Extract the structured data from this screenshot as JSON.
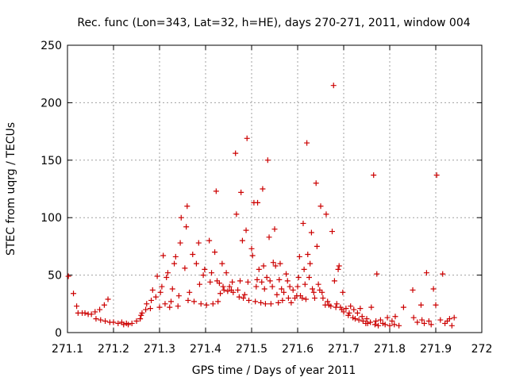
{
  "chart_data": {
    "type": "scatter",
    "title": "Rec. func (Lon=343, Lat=32, h=HE), days 270-271, 2011, window 004",
    "xlabel": "GPS time / Days of year 2011",
    "ylabel": "STEC from uqrg / TECUs",
    "xlim": [
      271.1,
      272
    ],
    "ylim": [
      0,
      250
    ],
    "xticks": [
      "271.1",
      "271.2",
      "271.3",
      "271.4",
      "271.5",
      "271.6",
      "271.7",
      "271.8",
      "271.9",
      "272"
    ],
    "yticks": [
      "0",
      "50",
      "100",
      "150",
      "200",
      "250"
    ],
    "grid": true,
    "marker": "plus",
    "color": "#cc0000",
    "series": [
      {
        "name": "STEC",
        "points": [
          [
            271.102,
            49
          ],
          [
            271.113,
            34
          ],
          [
            271.12,
            23
          ],
          [
            271.123,
            17
          ],
          [
            271.132,
            17
          ],
          [
            271.138,
            17
          ],
          [
            271.145,
            16
          ],
          [
            271.152,
            16
          ],
          [
            271.16,
            18
          ],
          [
            271.162,
            12
          ],
          [
            271.17,
            20
          ],
          [
            271.172,
            11
          ],
          [
            271.18,
            24
          ],
          [
            271.182,
            10
          ],
          [
            271.188,
            29
          ],
          [
            271.192,
            9
          ],
          [
            271.2,
            9
          ],
          [
            271.21,
            8
          ],
          [
            271.218,
            9
          ],
          [
            271.222,
            7
          ],
          [
            271.228,
            8
          ],
          [
            271.232,
            7
          ],
          [
            271.24,
            8
          ],
          [
            271.25,
            10
          ],
          [
            271.258,
            12
          ],
          [
            271.26,
            15
          ],
          [
            271.262,
            17
          ],
          [
            271.27,
            20
          ],
          [
            271.272,
            25
          ],
          [
            271.28,
            21
          ],
          [
            271.282,
            28
          ],
          [
            271.285,
            37
          ],
          [
            271.292,
            31
          ],
          [
            271.295,
            49
          ],
          [
            271.3,
            22
          ],
          [
            271.302,
            35
          ],
          [
            271.305,
            40
          ],
          [
            271.308,
            67
          ],
          [
            271.312,
            25
          ],
          [
            271.315,
            48
          ],
          [
            271.318,
            52
          ],
          [
            271.322,
            22
          ],
          [
            271.325,
            27
          ],
          [
            271.328,
            38
          ],
          [
            271.332,
            60
          ],
          [
            271.335,
            66
          ],
          [
            271.34,
            23
          ],
          [
            271.342,
            32
          ],
          [
            271.345,
            78
          ],
          [
            271.347,
            100
          ],
          [
            271.355,
            56
          ],
          [
            271.358,
            92
          ],
          [
            271.36,
            110
          ],
          [
            271.362,
            28
          ],
          [
            271.365,
            35
          ],
          [
            271.372,
            68
          ],
          [
            271.375,
            27
          ],
          [
            271.38,
            60
          ],
          [
            271.385,
            78
          ],
          [
            271.387,
            42
          ],
          [
            271.39,
            25
          ],
          [
            271.395,
            50
          ],
          [
            271.398,
            55
          ],
          [
            271.402,
            24
          ],
          [
            271.408,
            80
          ],
          [
            271.41,
            44
          ],
          [
            271.413,
            52
          ],
          [
            271.416,
            25
          ],
          [
            271.42,
            70
          ],
          [
            271.423,
            123
          ],
          [
            271.425,
            45
          ],
          [
            271.427,
            27
          ],
          [
            271.43,
            43
          ],
          [
            271.432,
            34
          ],
          [
            271.436,
            60
          ],
          [
            271.438,
            40
          ],
          [
            271.44,
            37
          ],
          [
            271.445,
            52
          ],
          [
            271.448,
            36
          ],
          [
            271.452,
            40
          ],
          [
            271.456,
            37
          ],
          [
            271.458,
            44
          ],
          [
            271.46,
            35
          ],
          [
            271.465,
            156
          ],
          [
            271.467,
            103
          ],
          [
            271.47,
            37
          ],
          [
            271.473,
            31
          ],
          [
            271.475,
            45
          ],
          [
            271.477,
            122
          ],
          [
            271.48,
            80
          ],
          [
            271.482,
            30
          ],
          [
            271.485,
            33
          ],
          [
            271.488,
            89
          ],
          [
            271.49,
            169
          ],
          [
            271.492,
            44
          ],
          [
            271.494,
            28
          ],
          [
            271.5,
            73
          ],
          [
            271.502,
            67
          ],
          [
            271.505,
            113
          ],
          [
            271.508,
            27
          ],
          [
            271.51,
            40
          ],
          [
            271.512,
            46
          ],
          [
            271.513,
            113
          ],
          [
            271.516,
            55
          ],
          [
            271.52,
            26
          ],
          [
            271.522,
            44
          ],
          [
            271.524,
            125
          ],
          [
            271.526,
            58
          ],
          [
            271.528,
            38
          ],
          [
            271.53,
            25
          ],
          [
            271.533,
            48
          ],
          [
            271.535,
            150
          ],
          [
            271.538,
            83
          ],
          [
            271.54,
            45
          ],
          [
            271.542,
            25
          ],
          [
            271.545,
            40
          ],
          [
            271.547,
            61
          ],
          [
            271.55,
            90
          ],
          [
            271.552,
            58
          ],
          [
            271.555,
            33
          ],
          [
            271.558,
            26
          ],
          [
            271.56,
            46
          ],
          [
            271.562,
            60
          ],
          [
            271.565,
            38
          ],
          [
            271.567,
            28
          ],
          [
            271.57,
            35
          ],
          [
            271.575,
            51
          ],
          [
            271.578,
            45
          ],
          [
            271.58,
            30
          ],
          [
            271.583,
            40
          ],
          [
            271.586,
            26
          ],
          [
            271.59,
            37
          ],
          [
            271.594,
            30
          ],
          [
            271.598,
            32
          ],
          [
            271.6,
            40
          ],
          [
            271.602,
            48
          ],
          [
            271.604,
            66
          ],
          [
            271.606,
            32
          ],
          [
            271.61,
            30
          ],
          [
            271.612,
            95
          ],
          [
            271.614,
            55
          ],
          [
            271.616,
            42
          ],
          [
            271.618,
            29
          ],
          [
            271.62,
            165
          ],
          [
            271.622,
            68
          ],
          [
            271.625,
            48
          ],
          [
            271.627,
            60
          ],
          [
            271.63,
            87
          ],
          [
            271.632,
            38
          ],
          [
            271.635,
            35
          ],
          [
            271.637,
            30
          ],
          [
            271.64,
            130
          ],
          [
            271.642,
            75
          ],
          [
            271.645,
            42
          ],
          [
            271.648,
            37
          ],
          [
            271.65,
            110
          ],
          [
            271.653,
            35
          ],
          [
            271.655,
            30
          ],
          [
            271.66,
            24
          ],
          [
            271.662,
            103
          ],
          [
            271.665,
            27
          ],
          [
            271.668,
            24
          ],
          [
            271.672,
            23
          ],
          [
            271.675,
            88
          ],
          [
            271.678,
            215
          ],
          [
            271.68,
            45
          ],
          [
            271.683,
            22
          ],
          [
            271.685,
            25
          ],
          [
            271.688,
            55
          ],
          [
            271.69,
            58
          ],
          [
            271.693,
            22
          ],
          [
            271.696,
            20
          ],
          [
            271.698,
            35
          ],
          [
            271.7,
            18
          ],
          [
            271.705,
            21
          ],
          [
            271.71,
            15
          ],
          [
            271.712,
            17
          ],
          [
            271.715,
            23
          ],
          [
            271.72,
            13
          ],
          [
            271.722,
            20
          ],
          [
            271.725,
            12
          ],
          [
            271.73,
            17
          ],
          [
            271.733,
            11
          ],
          [
            271.736,
            21
          ],
          [
            271.74,
            14
          ],
          [
            271.742,
            10
          ],
          [
            271.748,
            8
          ],
          [
            271.75,
            12
          ],
          [
            271.752,
            8
          ],
          [
            271.758,
            9
          ],
          [
            271.76,
            22
          ],
          [
            271.765,
            137
          ],
          [
            271.768,
            7
          ],
          [
            271.77,
            10
          ],
          [
            271.772,
            51
          ],
          [
            271.775,
            6
          ],
          [
            271.78,
            11
          ],
          [
            271.785,
            8
          ],
          [
            271.79,
            7
          ],
          [
            271.795,
            13
          ],
          [
            271.8,
            6
          ],
          [
            271.805,
            10
          ],
          [
            271.81,
            7
          ],
          [
            271.812,
            14
          ],
          [
            271.82,
            6
          ],
          [
            271.83,
            22
          ],
          [
            271.85,
            37
          ],
          [
            271.852,
            13
          ],
          [
            271.86,
            9
          ],
          [
            271.868,
            24
          ],
          [
            271.87,
            11
          ],
          [
            271.875,
            8
          ],
          [
            271.88,
            52
          ],
          [
            271.885,
            10
          ],
          [
            271.89,
            7
          ],
          [
            271.895,
            38
          ],
          [
            271.9,
            24
          ],
          [
            271.902,
            137
          ],
          [
            271.91,
            11
          ],
          [
            271.915,
            51
          ],
          [
            271.92,
            8
          ],
          [
            271.925,
            10
          ],
          [
            271.93,
            12
          ],
          [
            271.935,
            6
          ],
          [
            271.94,
            13
          ]
        ]
      }
    ]
  }
}
